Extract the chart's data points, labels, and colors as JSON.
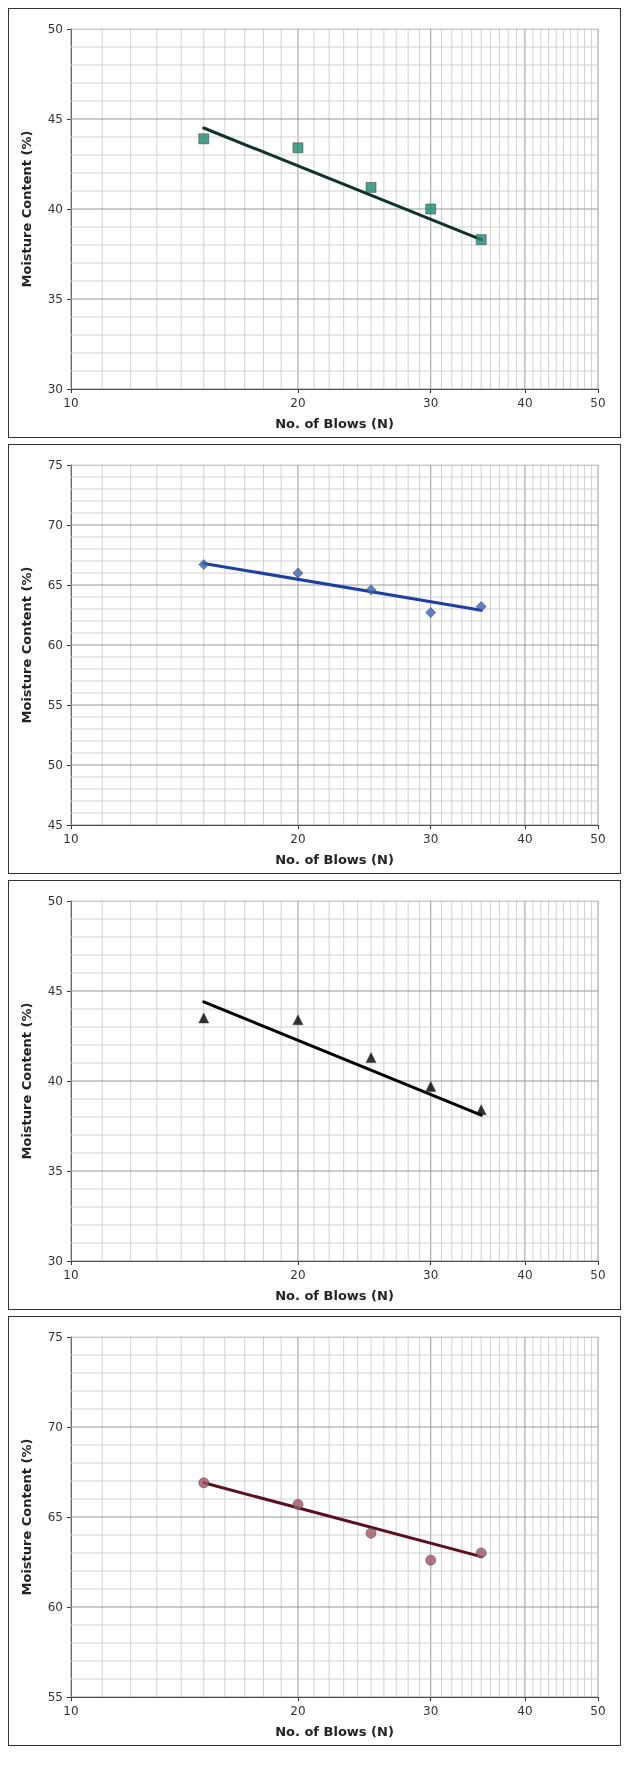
{
  "chart_data": [
    {
      "type": "scatter",
      "xlabel": "No. of Blows (N)",
      "ylabel": "Moisture Content (%)",
      "log": "x",
      "grid": true,
      "x": [
        15,
        20,
        25,
        30,
        35
      ],
      "xlim": [
        10,
        50
      ],
      "ylim": [
        30,
        50
      ],
      "xticks": [
        10,
        {
          "value": 11,
          "label": null
        },
        {
          "value": 12,
          "label": null
        },
        {
          "value": 13,
          "label": null
        },
        {
          "value": 14,
          "label": null
        },
        {
          "value": 15,
          "label": null
        },
        {
          "value": 16,
          "label": null
        },
        {
          "value": 17,
          "label": null
        },
        {
          "value": 18,
          "label": null
        },
        {
          "value": 19,
          "label": null
        },
        20,
        {
          "value": 21,
          "label": null
        },
        {
          "value": 22,
          "label": null
        },
        {
          "value": 23,
          "label": null
        },
        {
          "value": 24,
          "label": null
        },
        {
          "value": 25,
          "label": null
        },
        {
          "value": 26,
          "label": null
        },
        {
          "value": 27,
          "label": null
        },
        {
          "value": 28,
          "label": null
        },
        {
          "value": 29,
          "label": null
        },
        30,
        {
          "value": 31,
          "label": null
        },
        {
          "value": 32,
          "label": null
        },
        {
          "value": 33,
          "label": null
        },
        {
          "value": 34,
          "label": null
        },
        {
          "value": 35,
          "label": null
        },
        {
          "value": 36,
          "label": null
        },
        {
          "value": 37,
          "label": null
        },
        {
          "value": 38,
          "label": null
        },
        {
          "value": 39,
          "label": null
        },
        40,
        {
          "value": 41,
          "label": null
        },
        {
          "value": 42,
          "label": null
        },
        {
          "value": 43,
          "label": null
        },
        {
          "value": 44,
          "label": null
        },
        {
          "value": 45,
          "label": null
        },
        {
          "value": 46,
          "label": null
        },
        {
          "value": 47,
          "label": null
        },
        {
          "value": 48,
          "label": null
        },
        {
          "value": 49,
          "label": null
        },
        50
      ],
      "yticks": [
        30,
        {
          "value": 31,
          "label": null
        },
        {
          "value": 32,
          "label": null
        },
        {
          "value": 33,
          "label": null
        },
        {
          "value": 34,
          "label": null
        },
        35,
        {
          "value": 36,
          "label": null
        },
        {
          "value": 37,
          "label": null
        },
        {
          "value": 38,
          "label": null
        },
        {
          "value": 39,
          "label": null
        },
        40,
        {
          "value": 41,
          "label": null
        },
        {
          "value": 42,
          "label": null
        },
        {
          "value": 43,
          "label": null
        },
        {
          "value": 44,
          "label": null
        },
        45,
        {
          "value": 46,
          "label": null
        },
        {
          "value": 47,
          "label": null
        },
        {
          "value": 48,
          "label": null
        },
        {
          "value": 49,
          "label": null
        },
        50
      ],
      "series": [
        {
          "marker": "square",
          "color": "#1e8a70",
          "values": [
            43.9,
            43.4,
            41.2,
            40.0,
            38.3
          ]
        },
        {
          "type": "line",
          "marker": "none",
          "color": "#10332a",
          "values": [
            44.5,
            null,
            null,
            null,
            38.3
          ]
        }
      ]
    },
    {
      "type": "scatter",
      "xlabel": "No. of Blows (N)",
      "ylabel": "Moisture Content (%)",
      "log": "x",
      "grid": true,
      "x": [
        15,
        20,
        25,
        30,
        35
      ],
      "xlim": [
        10,
        50
      ],
      "ylim": [
        45,
        75
      ],
      "xticks": [
        10,
        {
          "value": 11,
          "label": null
        },
        {
          "value": 12,
          "label": null
        },
        {
          "value": 13,
          "label": null
        },
        {
          "value": 14,
          "label": null
        },
        {
          "value": 15,
          "label": null
        },
        {
          "value": 16,
          "label": null
        },
        {
          "value": 17,
          "label": null
        },
        {
          "value": 18,
          "label": null
        },
        {
          "value": 19,
          "label": null
        },
        20,
        {
          "value": 21,
          "label": null
        },
        {
          "value": 22,
          "label": null
        },
        {
          "value": 23,
          "label": null
        },
        {
          "value": 24,
          "label": null
        },
        {
          "value": 25,
          "label": null
        },
        {
          "value": 26,
          "label": null
        },
        {
          "value": 27,
          "label": null
        },
        {
          "value": 28,
          "label": null
        },
        {
          "value": 29,
          "label": null
        },
        30,
        {
          "value": 31,
          "label": null
        },
        {
          "value": 32,
          "label": null
        },
        {
          "value": 33,
          "label": null
        },
        {
          "value": 34,
          "label": null
        },
        {
          "value": 35,
          "label": null
        },
        {
          "value": 36,
          "label": null
        },
        {
          "value": 37,
          "label": null
        },
        {
          "value": 38,
          "label": null
        },
        {
          "value": 39,
          "label": null
        },
        40,
        {
          "value": 41,
          "label": null
        },
        {
          "value": 42,
          "label": null
        },
        {
          "value": 43,
          "label": null
        },
        {
          "value": 44,
          "label": null
        },
        {
          "value": 45,
          "label": null
        },
        {
          "value": 46,
          "label": null
        },
        {
          "value": 47,
          "label": null
        },
        {
          "value": 48,
          "label": null
        },
        {
          "value": 49,
          "label": null
        },
        50
      ],
      "yticks": [
        45,
        {
          "value": 46,
          "label": null
        },
        {
          "value": 47,
          "label": null
        },
        {
          "value": 48,
          "label": null
        },
        {
          "value": 49,
          "label": null
        },
        50,
        {
          "value": 51,
          "label": null
        },
        {
          "value": 52,
          "label": null
        },
        {
          "value": 53,
          "label": null
        },
        {
          "value": 54,
          "label": null
        },
        55,
        {
          "value": 56,
          "label": null
        },
        {
          "value": 57,
          "label": null
        },
        {
          "value": 58,
          "label": null
        },
        {
          "value": 59,
          "label": null
        },
        60,
        {
          "value": 61,
          "label": null
        },
        {
          "value": 62,
          "label": null
        },
        {
          "value": 63,
          "label": null
        },
        {
          "value": 64,
          "label": null
        },
        65,
        {
          "value": 66,
          "label": null
        },
        {
          "value": 67,
          "label": null
        },
        {
          "value": 68,
          "label": null
        },
        {
          "value": 69,
          "label": null
        },
        70,
        {
          "value": 71,
          "label": null
        },
        {
          "value": 72,
          "label": null
        },
        {
          "value": 73,
          "label": null
        },
        {
          "value": 74,
          "label": null
        },
        75
      ],
      "series": [
        {
          "marker": "diamond",
          "color": "#3a64b8",
          "values": [
            66.7,
            66.0,
            64.6,
            62.7,
            63.2
          ]
        },
        {
          "type": "line",
          "marker": "none",
          "color": "#1f3fa0",
          "values": [
            66.8,
            null,
            null,
            null,
            62.9
          ]
        }
      ]
    },
    {
      "type": "scatter",
      "xlabel": "No. of Blows (N)",
      "ylabel": "Moisture Content (%)",
      "log": "x",
      "grid": true,
      "x": [
        15,
        20,
        25,
        30,
        35
      ],
      "xlim": [
        10,
        50
      ],
      "ylim": [
        30,
        50
      ],
      "xticks": [
        10,
        {
          "value": 11,
          "label": null
        },
        {
          "value": 12,
          "label": null
        },
        {
          "value": 13,
          "label": null
        },
        {
          "value": 14,
          "label": null
        },
        {
          "value": 15,
          "label": null
        },
        {
          "value": 16,
          "label": null
        },
        {
          "value": 17,
          "label": null
        },
        {
          "value": 18,
          "label": null
        },
        {
          "value": 19,
          "label": null
        },
        20,
        {
          "value": 21,
          "label": null
        },
        {
          "value": 22,
          "label": null
        },
        {
          "value": 23,
          "label": null
        },
        {
          "value": 24,
          "label": null
        },
        {
          "value": 25,
          "label": null
        },
        {
          "value": 26,
          "label": null
        },
        {
          "value": 27,
          "label": null
        },
        {
          "value": 28,
          "label": null
        },
        {
          "value": 29,
          "label": null
        },
        30,
        {
          "value": 31,
          "label": null
        },
        {
          "value": 32,
          "label": null
        },
        {
          "value": 33,
          "label": null
        },
        {
          "value": 34,
          "label": null
        },
        {
          "value": 35,
          "label": null
        },
        {
          "value": 36,
          "label": null
        },
        {
          "value": 37,
          "label": null
        },
        {
          "value": 38,
          "label": null
        },
        {
          "value": 39,
          "label": null
        },
        40,
        {
          "value": 41,
          "label": null
        },
        {
          "value": 42,
          "label": null
        },
        {
          "value": 43,
          "label": null
        },
        {
          "value": 44,
          "label": null
        },
        {
          "value": 45,
          "label": null
        },
        {
          "value": 46,
          "label": null
        },
        {
          "value": 47,
          "label": null
        },
        {
          "value": 48,
          "label": null
        },
        {
          "value": 49,
          "label": null
        },
        50
      ],
      "yticks": [
        30,
        {
          "value": 31,
          "label": null
        },
        {
          "value": 32,
          "label": null
        },
        {
          "value": 33,
          "label": null
        },
        {
          "value": 34,
          "label": null
        },
        35,
        {
          "value": 36,
          "label": null
        },
        {
          "value": 37,
          "label": null
        },
        {
          "value": 38,
          "label": null
        },
        {
          "value": 39,
          "label": null
        },
        40,
        {
          "value": 41,
          "label": null
        },
        {
          "value": 42,
          "label": null
        },
        {
          "value": 43,
          "label": null
        },
        {
          "value": 44,
          "label": null
        },
        45,
        {
          "value": 46,
          "label": null
        },
        {
          "value": 47,
          "label": null
        },
        {
          "value": 48,
          "label": null
        },
        {
          "value": 49,
          "label": null
        },
        50
      ],
      "series": [
        {
          "marker": "triangle",
          "color": "#000000",
          "values": [
            43.5,
            43.4,
            41.3,
            39.7,
            38.4
          ]
        },
        {
          "type": "line",
          "marker": "none",
          "color": "#000000",
          "values": [
            44.4,
            null,
            null,
            null,
            38.1
          ]
        }
      ]
    },
    {
      "type": "scatter",
      "xlabel": "No. of Blows (N)",
      "ylabel": "Moisture Content (%)",
      "log": "x",
      "grid": true,
      "x": [
        15,
        20,
        25,
        30,
        35
      ],
      "xlim": [
        10,
        50
      ],
      "ylim": [
        55,
        75
      ],
      "xticks": [
        10,
        {
          "value": 11,
          "label": null
        },
        {
          "value": 12,
          "label": null
        },
        {
          "value": 13,
          "label": null
        },
        {
          "value": 14,
          "label": null
        },
        {
          "value": 15,
          "label": null
        },
        {
          "value": 16,
          "label": null
        },
        {
          "value": 17,
          "label": null
        },
        {
          "value": 18,
          "label": null
        },
        {
          "value": 19,
          "label": null
        },
        20,
        {
          "value": 21,
          "label": null
        },
        {
          "value": 22,
          "label": null
        },
        {
          "value": 23,
          "label": null
        },
        {
          "value": 24,
          "label": null
        },
        {
          "value": 25,
          "label": null
        },
        {
          "value": 26,
          "label": null
        },
        {
          "value": 27,
          "label": null
        },
        {
          "value": 28,
          "label": null
        },
        {
          "value": 29,
          "label": null
        },
        30,
        {
          "value": 31,
          "label": null
        },
        {
          "value": 32,
          "label": null
        },
        {
          "value": 33,
          "label": null
        },
        {
          "value": 34,
          "label": null
        },
        {
          "value": 35,
          "label": null
        },
        {
          "value": 36,
          "label": null
        },
        {
          "value": 37,
          "label": null
        },
        {
          "value": 38,
          "label": null
        },
        {
          "value": 39,
          "label": null
        },
        40,
        {
          "value": 41,
          "label": null
        },
        {
          "value": 42,
          "label": null
        },
        {
          "value": 43,
          "label": null
        },
        {
          "value": 44,
          "label": null
        },
        {
          "value": 45,
          "label": null
        },
        {
          "value": 46,
          "label": null
        },
        {
          "value": 47,
          "label": null
        },
        {
          "value": 48,
          "label": null
        },
        {
          "value": 49,
          "label": null
        },
        50
      ],
      "yticks": [
        55,
        {
          "value": 56,
          "label": null
        },
        {
          "value": 57,
          "label": null
        },
        {
          "value": 58,
          "label": null
        },
        {
          "value": 59,
          "label": null
        },
        60,
        {
          "value": 61,
          "label": null
        },
        {
          "value": 62,
          "label": null
        },
        {
          "value": 63,
          "label": null
        },
        {
          "value": 64,
          "label": null
        },
        65,
        {
          "value": 66,
          "label": null
        },
        {
          "value": 67,
          "label": null
        },
        {
          "value": 68,
          "label": null
        },
        {
          "value": 69,
          "label": null
        },
        70,
        {
          "value": 71,
          "label": null
        },
        {
          "value": 72,
          "label": null
        },
        {
          "value": 73,
          "label": null
        },
        {
          "value": 74,
          "label": null
        },
        75
      ],
      "series": [
        {
          "marker": "circle",
          "color": "#a0566a",
          "values": [
            66.9,
            65.7,
            64.1,
            62.6,
            63.0
          ]
        },
        {
          "type": "line",
          "marker": "none",
          "color": "#5a1020",
          "values": [
            66.9,
            null,
            null,
            null,
            62.8
          ]
        }
      ]
    }
  ]
}
